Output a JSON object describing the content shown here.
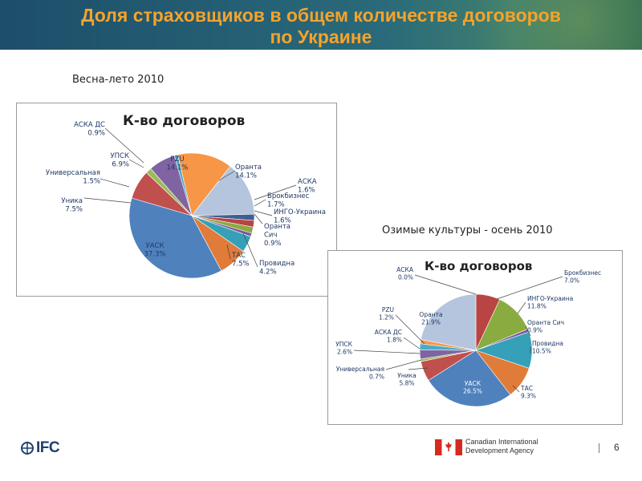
{
  "header": {
    "title_line1": "Доля страховщиков в общем количестве договоров",
    "title_line2": "по Украине"
  },
  "colors": {
    "banner": "#1d4e6a",
    "title": "#f6a32b"
  },
  "chart_data": [
    {
      "type": "pie",
      "heading": "Весна-лето 2010",
      "title": "К-во договоров",
      "slices": [
        {
          "label": "PZU",
          "value": 14.1,
          "color": "#f79646"
        },
        {
          "label": "Оранта",
          "value": 14.1,
          "color": "#b5c5de"
        },
        {
          "label": "АСКА",
          "value": 1.6,
          "color": "#3d5f93"
        },
        {
          "label": "Брокбизнес",
          "value": 1.7,
          "color": "#b84444"
        },
        {
          "label": "ИНГО-Украина",
          "value": 1.6,
          "color": "#8aab3f"
        },
        {
          "label": "Оранта Сич",
          "value": 0.9,
          "color": "#7a5aa0"
        },
        {
          "label": "Провидна",
          "value": 4.2,
          "color": "#35a0b7"
        },
        {
          "label": "ТАС",
          "value": 7.5,
          "color": "#e07b39"
        },
        {
          "label": "УАСК",
          "value": 37.3,
          "color": "#4f81bd"
        },
        {
          "label": "Уника",
          "value": 7.5,
          "color": "#c0504d"
        },
        {
          "label": "Универсальная",
          "value": 1.5,
          "color": "#9bbb59"
        },
        {
          "label": "УПСК",
          "value": 6.9,
          "color": "#8064a2"
        },
        {
          "label": "АСКА ДС",
          "value": 0.9,
          "color": "#4bacc6"
        }
      ],
      "labels": [
        {
          "name": "PZU",
          "pct": "14.1%",
          "color": "#1f3864"
        },
        {
          "name": "Оранта",
          "pct": "14.1%"
        },
        {
          "name": "АСКА",
          "pct": "1.6%"
        },
        {
          "name": "Брокбизнес",
          "pct": "1.7%"
        },
        {
          "name": "ИНГО-Украина",
          "pct": "1.6%"
        },
        {
          "name": "Оранта\nСич",
          "pct": "0.9%"
        },
        {
          "name": "Провидна",
          "pct": "4.2%"
        },
        {
          "name": "ТАС",
          "pct": "7.5%"
        },
        {
          "name": "УАСК",
          "pct": "37.3%"
        },
        {
          "name": "Уника",
          "pct": "7.5%"
        },
        {
          "name": "Универсальная",
          "pct": "1.5%"
        },
        {
          "name": "УПСК",
          "pct": "6.9%"
        },
        {
          "name": "АСКА ДС",
          "pct": "0.9%"
        }
      ]
    },
    {
      "type": "pie",
      "heading": "Озимые культуры - осень 2010",
      "title": "К-во договоров",
      "slices": [
        {
          "label": "АСКА",
          "value": 0.0,
          "color": "#3d5f93"
        },
        {
          "label": "Брокбизнес",
          "value": 7.0,
          "color": "#b84444"
        },
        {
          "label": "ИНГО-Украина",
          "value": 11.8,
          "color": "#8aab3f"
        },
        {
          "label": "Оранта Сич",
          "value": 0.9,
          "color": "#7a5aa0"
        },
        {
          "label": "Провидна",
          "value": 10.5,
          "color": "#35a0b7"
        },
        {
          "label": "ТАС",
          "value": 9.3,
          "color": "#e07b39"
        },
        {
          "label": "УАСК",
          "value": 26.5,
          "color": "#4f81bd"
        },
        {
          "label": "Уника",
          "value": 5.8,
          "color": "#c0504d"
        },
        {
          "label": "Универсальная",
          "value": 0.7,
          "color": "#9bbb59"
        },
        {
          "label": "УПСК",
          "value": 2.6,
          "color": "#8064a2"
        },
        {
          "label": "АСКА ДС",
          "value": 1.8,
          "color": "#4bacc6"
        },
        {
          "label": "PZU",
          "value": 1.2,
          "color": "#f79646"
        },
        {
          "label": "Оранта",
          "value": 21.9,
          "color": "#b5c5de"
        }
      ],
      "labels": [
        {
          "name": "АСКА",
          "pct": "0.0%"
        },
        {
          "name": "Брокбизнес",
          "pct": "7.0%"
        },
        {
          "name": "ИНГО-Украина",
          "pct": "11.8%"
        },
        {
          "name": "Оранта Сич",
          "pct": "0.9%"
        },
        {
          "name": "Провидна",
          "pct": "10.5%"
        },
        {
          "name": "ТАС",
          "pct": "9.3%"
        },
        {
          "name": "УАСК",
          "pct": "26.5%",
          "color": "#ffffff"
        },
        {
          "name": "Уника",
          "pct": "5.8%"
        },
        {
          "name": "Универсальная",
          "pct": "0.7%"
        },
        {
          "name": "УПСК",
          "pct": "2.6%"
        },
        {
          "name": "АСКА ДС",
          "pct": "1.8%"
        },
        {
          "name": "PZU",
          "pct": "1.2%"
        },
        {
          "name": "Оранта",
          "pct": "21.9%",
          "color": "#1f3864"
        }
      ]
    }
  ],
  "footer": {
    "ifc_label": "IFC",
    "cida_line1": "Canadian International",
    "cida_line2": "Development Agency",
    "page_number": "6"
  }
}
